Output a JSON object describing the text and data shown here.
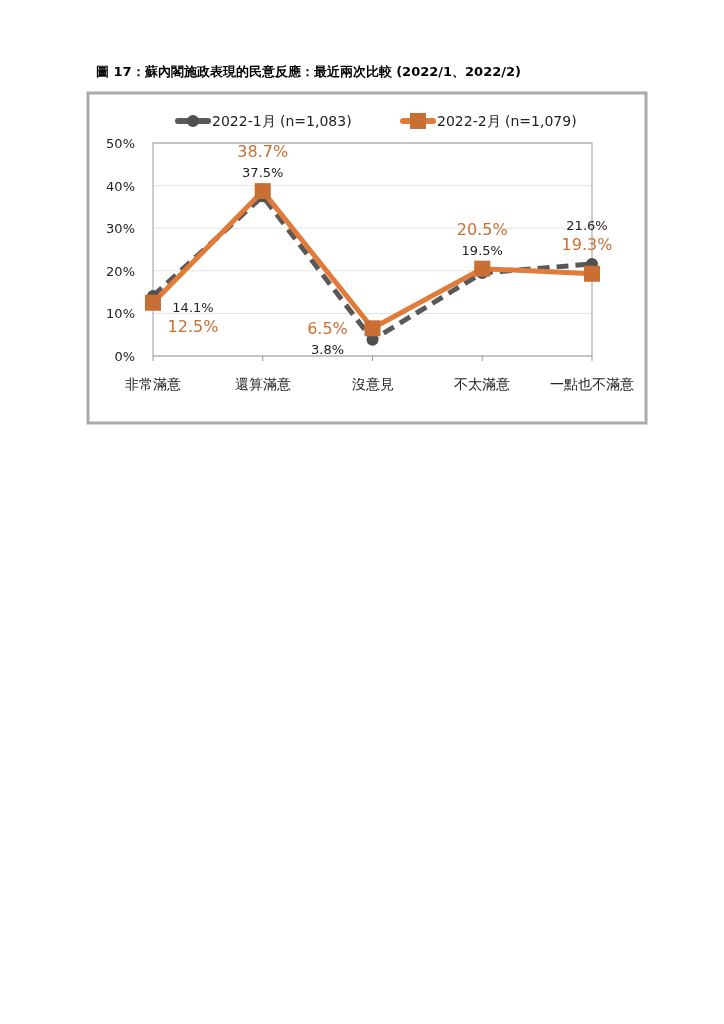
{
  "chart_data": {
    "type": "line",
    "title": "圖 17：蘇內閣施政表現的民意反應：最近兩次比較 (2022/1、2022/2)",
    "categories": [
      "非常滿意",
      "還算滿意",
      "沒意見",
      "不太滿意",
      "一點也不滿意"
    ],
    "series": [
      {
        "name": "2022-1月 (n=1,083)",
        "color": "#595959",
        "values": [
          14.1,
          37.5,
          3.8,
          19.5,
          21.6
        ],
        "marker": "circle",
        "line_style": "dashed",
        "value_labels": [
          "14.1%",
          "37.5%",
          "3.8%",
          "19.5%",
          "21.6%"
        ]
      },
      {
        "name": "2022-2月 (n=1,079)",
        "color": "#e07b39",
        "values": [
          12.5,
          38.7,
          6.5,
          20.5,
          19.3
        ],
        "marker": "square",
        "line_style": "solid",
        "value_labels": [
          "12.5%",
          "38.7%",
          "6.5%",
          "20.5%",
          "19.3%"
        ]
      }
    ],
    "ylim": [
      0,
      50
    ],
    "yticks": [
      {
        "value": 0,
        "label": "0%"
      },
      {
        "value": 10,
        "label": "10%"
      },
      {
        "value": 20,
        "label": "20%"
      },
      {
        "value": 30,
        "label": "30%"
      },
      {
        "value": 40,
        "label": "40%"
      },
      {
        "value": 50,
        "label": "50%"
      }
    ],
    "grid": "y",
    "legend": "top"
  }
}
